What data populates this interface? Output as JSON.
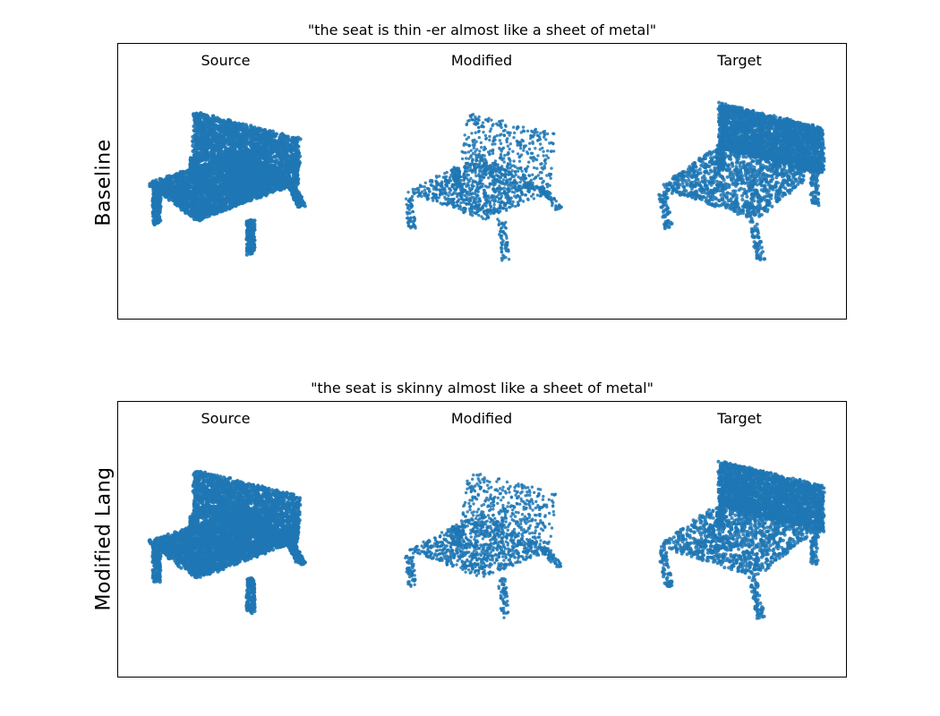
{
  "chart_data": [
    {
      "type": "scatter",
      "title": "\"the seat is thin -er almost like a sheet of metal\"",
      "row_label": "Baseline",
      "columns": [
        "Source",
        "Modified",
        "Target"
      ],
      "axes_visible": false,
      "point_color": "#1f77b4"
    },
    {
      "type": "scatter",
      "title": "\"the seat is skinny almost like a sheet of metal\"",
      "row_label": "Modified Lang",
      "columns": [
        "Source",
        "Modified",
        "Target"
      ],
      "axes_visible": false,
      "point_color": "#1f77b4"
    }
  ]
}
